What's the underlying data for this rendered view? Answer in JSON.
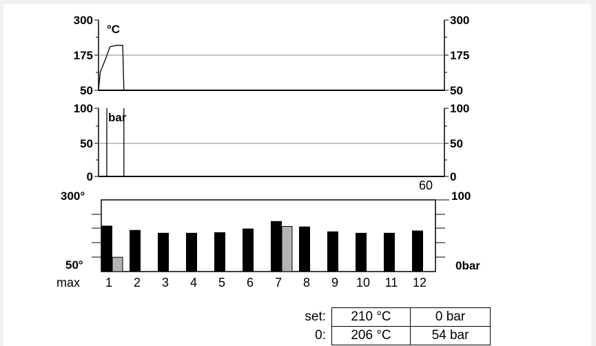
{
  "temperature_panel": {
    "unit_label": "°C",
    "left_ticks": [
      "300",
      "175",
      "50"
    ],
    "right_ticks": [
      "300",
      "175",
      "50"
    ],
    "trace": [
      {
        "t": 0,
        "v": 50
      },
      {
        "t": 0.3,
        "v": 115
      },
      {
        "t": 1.2,
        "v": 160
      },
      {
        "t": 2.0,
        "v": 205
      },
      {
        "t": 3.2,
        "v": 210
      },
      {
        "t": 4.2,
        "v": 210
      },
      {
        "t": 4.4,
        "v": 50
      },
      {
        "t": 60,
        "v": 50
      }
    ]
  },
  "pressure_panel": {
    "unit_label": "bar",
    "left_ticks": [
      "100",
      "50",
      "0"
    ],
    "right_ticks": [
      "100",
      "50",
      "0"
    ],
    "x_end_label": "60",
    "cursor_time": 4.4
  },
  "zone_panel": {
    "left_top_label": "300°",
    "left_bottom_label": "50°",
    "right_top_label": "100",
    "right_bottom_label": "0bar",
    "row_label": "max",
    "temp_range": [
      50,
      300
    ],
    "zones": [
      {
        "label": "1",
        "temp": 210,
        "pressure": 20
      },
      {
        "label": "2",
        "temp": 195
      },
      {
        "label": "3",
        "temp": 185
      },
      {
        "label": "4",
        "temp": 185
      },
      {
        "label": "5",
        "temp": 187
      },
      {
        "label": "6",
        "temp": 200
      },
      {
        "label": "7",
        "temp": 226,
        "pressure": 63
      },
      {
        "label": "8",
        "temp": 207
      },
      {
        "label": "9",
        "temp": 190
      },
      {
        "label": "10",
        "temp": 185
      },
      {
        "label": "11",
        "temp": 185
      },
      {
        "label": "12",
        "temp": 193
      }
    ]
  },
  "readout": {
    "set_label": "set:",
    "set_temp": "210 °C",
    "set_pressure": "0 bar",
    "actual_label": "0:",
    "actual_temp": "206 °C",
    "actual_pressure": "54 bar"
  },
  "colors": {
    "temp_bar": "#000000",
    "pressure_bar": "#b3b3b3",
    "reference_line": "#8a8a8a"
  }
}
